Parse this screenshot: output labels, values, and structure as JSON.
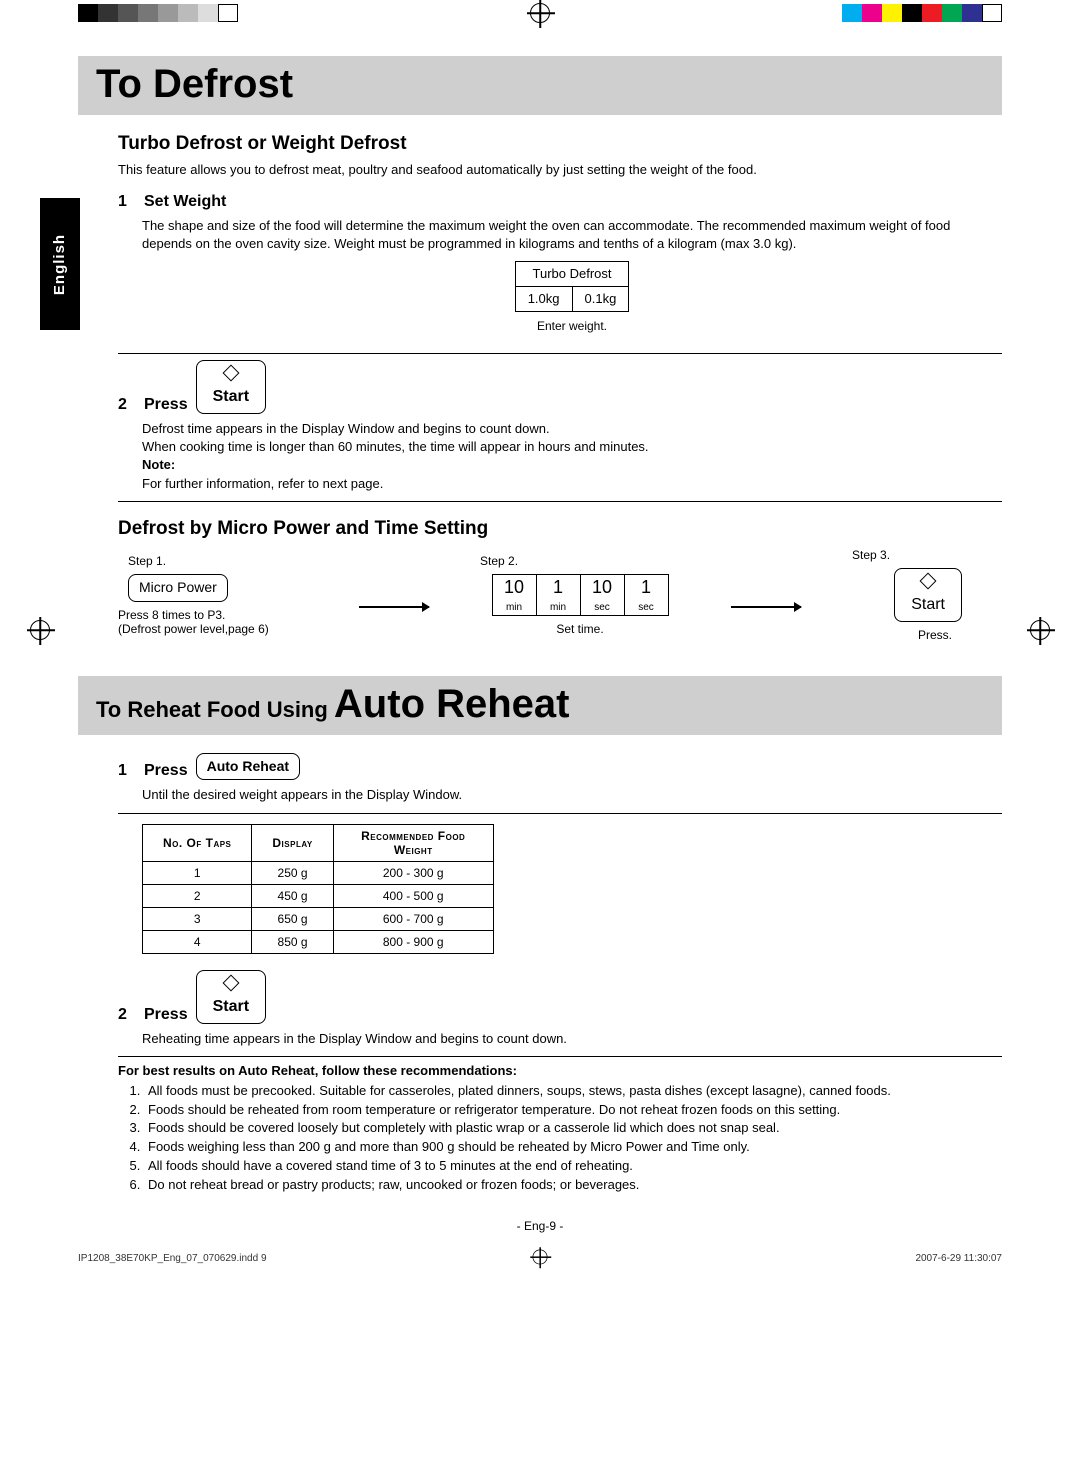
{
  "printer": {
    "gray_swatches": [
      "#000000",
      "#333333",
      "#555555",
      "#777777",
      "#999999",
      "#bbbbbb",
      "#dddddd",
      "#ffffff"
    ],
    "color_swatches": [
      "#00aeef",
      "#ec008c",
      "#fff200",
      "#000000",
      "#ed1c24",
      "#00a651",
      "#2e3192",
      "#ffffff"
    ]
  },
  "lang_tab": "English",
  "defrost": {
    "title": "To Defrost",
    "subsection": "Turbo Defrost or Weight Defrost",
    "intro": "This feature allows you to defrost meat, poultry and seafood automatically by just setting the weight of the food.",
    "step1": {
      "num": "1",
      "title": "Set Weight",
      "body": "The shape and size of the food will determine the maximum weight the oven can accommodate. The recommended maximum weight of food depends on the oven cavity size. Weight must be programmed in kilograms and tenths of a kilogram (max 3.0 kg).",
      "turbo_label": "Turbo Defrost",
      "turbo_cells": [
        "1.0kg",
        "0.1kg"
      ],
      "caption": "Enter weight."
    },
    "step2": {
      "num": "2",
      "title": "Press",
      "start": "Start",
      "body1": "Defrost time appears in the Display Window and begins to count down.",
      "body2": "When cooking time is longer than 60 minutes, the time will appear in hours and minutes.",
      "note_label": "Note:",
      "note_body": "For further information, refer to next page."
    },
    "micro": {
      "heading": "Defrost by Micro Power and Time Setting",
      "step1_lbl": "Step 1.",
      "step2_lbl": "Step 2.",
      "step3_lbl": "Step 3.",
      "micro_power": "Micro Power",
      "time_top": [
        "10",
        "1",
        "10",
        "1"
      ],
      "time_bot": [
        "min",
        "min",
        "sec",
        "sec"
      ],
      "start": "Start",
      "cap1a": "Press 8 times to P3.",
      "cap1b": "(Defrost power level,page 6)",
      "cap2": "Set time.",
      "cap3": "Press."
    }
  },
  "reheat": {
    "title_pre": "To Reheat Food Using ",
    "title_big": "Auto Reheat",
    "step1": {
      "num": "1",
      "title": "Press",
      "btn": "Auto Reheat",
      "body": "Until the desired weight appears in the Display Window."
    },
    "taps": {
      "headers": [
        "No. Of Taps",
        "Display",
        "Recommended Food Weight"
      ],
      "rows": [
        [
          "1",
          "250 g",
          "200 - 300 g"
        ],
        [
          "2",
          "450 g",
          "400 - 500 g"
        ],
        [
          "3",
          "650 g",
          "600 - 700 g"
        ],
        [
          "4",
          "850 g",
          "800 - 900 g"
        ]
      ]
    },
    "step2": {
      "num": "2",
      "title": "Press",
      "start": "Start",
      "body": "Reheating time appears in the Display Window and begins to count down."
    },
    "recs_title": "For best results on Auto Reheat, follow these recommendations:",
    "recs": [
      "All foods must be precooked. Suitable for casseroles, plated dinners, soups, stews, pasta dishes (except lasagne), canned foods.",
      "Foods should be reheated from room temperature or refrigerator temperature. Do not reheat frozen foods on this setting.",
      "Foods should be covered loosely but completely with plastic wrap or a casserole lid which does not snap seal.",
      "Foods weighing less than 200 g and more than 900 g should be reheated by Micro Power and Time only.",
      "All foods should have a covered stand time of 3 to 5 minutes at the end of reheating.",
      "Do not reheat bread or pastry products; raw, uncooked or frozen foods; or beverages."
    ]
  },
  "page_num": "- Eng-9 -",
  "footer_left": "IP1208_38E70KP_Eng_07_070629.indd   9",
  "footer_right": "2007-6-29   11:30:07"
}
